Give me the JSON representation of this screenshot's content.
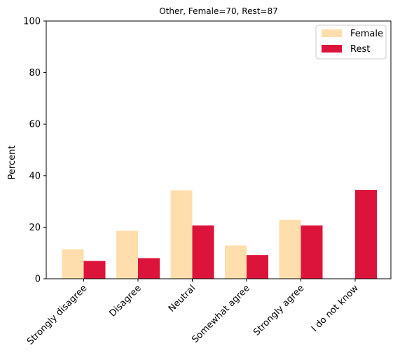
{
  "chart_data": {
    "type": "bar",
    "title": "Other, Female=70, Rest=87",
    "xlabel": "",
    "ylabel": "Percent",
    "ylim": [
      0,
      100
    ],
    "yticks": [
      0,
      20,
      40,
      60,
      80,
      100
    ],
    "grid": false,
    "legend_position": "top-right",
    "categories": [
      "Strongly disagree",
      "Disagree",
      "Neutral",
      "Somewhat agree",
      "Strongly agree",
      "I do not know"
    ],
    "series": [
      {
        "name": "Female",
        "color": "#FFDEAD",
        "values": [
          11.4,
          18.6,
          34.3,
          12.9,
          22.9,
          0.0
        ]
      },
      {
        "name": "Rest",
        "color": "#DC143C",
        "values": [
          6.9,
          8.0,
          20.7,
          9.2,
          20.7,
          34.5
        ]
      }
    ]
  }
}
